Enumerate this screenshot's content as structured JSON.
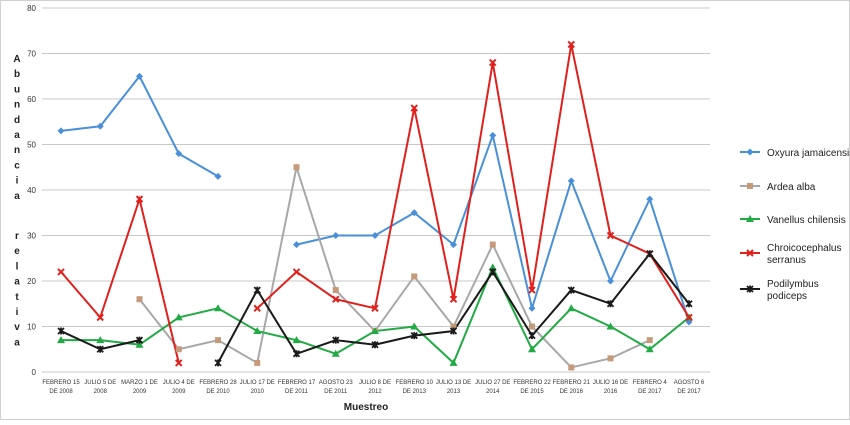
{
  "chart_data": {
    "type": "line",
    "title": "",
    "xlabel": "Muestreo",
    "ylabel": "Abundancia relativa",
    "ylim": [
      0,
      80
    ],
    "yticks": [
      0,
      10,
      20,
      30,
      40,
      50,
      60,
      70,
      80
    ],
    "grid": "horizontal",
    "legend": "right",
    "categories": [
      [
        "FEBRERO 15",
        "DE 2008"
      ],
      [
        "JULIO 5 DE",
        "2008"
      ],
      [
        "MARZO 1 DE",
        "2009"
      ],
      [
        "JULIO 4 DE",
        "2009"
      ],
      [
        "FEBRERO 28",
        "DE 2010"
      ],
      [
        "JULIO 17 DE",
        "2010"
      ],
      [
        "FEBRERO 17",
        "DE 2011"
      ],
      [
        "AGOSTO 23",
        "DE 2011"
      ],
      [
        "JULIO 8 DE",
        "2012"
      ],
      [
        "FEBRERO 10",
        "DE 2013"
      ],
      [
        "JULIO 13 DE",
        "2013"
      ],
      [
        "JULIO 27 DE",
        "2014"
      ],
      [
        "FEBRERO 22",
        "DE 2015"
      ],
      [
        "FEBRERO 21",
        "DE 2016"
      ],
      [
        "JULIO 16 DE",
        "2016"
      ],
      [
        "FEBRERO 4",
        "DE 2017"
      ],
      [
        "AGOSTO 6",
        "DE 2017"
      ]
    ],
    "series": [
      {
        "name": "Oxyura jamaicensis",
        "color": "#4a90d9",
        "marker": "diamond",
        "values": [
          53,
          54,
          65,
          48,
          43,
          null,
          28,
          30,
          30,
          35,
          28,
          52,
          14,
          42,
          20,
          38,
          11
        ]
      },
      {
        "name": "Ardea alba",
        "color": "#a8a8a8",
        "markerColor": "#c49a7a",
        "marker": "square",
        "values": [
          null,
          null,
          16,
          5,
          7,
          2,
          45,
          18,
          9,
          21,
          10,
          28,
          10,
          1,
          3,
          7,
          null
        ]
      },
      {
        "name": "Vanellus chilensis",
        "color": "#22aa44",
        "marker": "triangle",
        "values": [
          7,
          7,
          6,
          12,
          14,
          9,
          7,
          4,
          9,
          10,
          2,
          23,
          5,
          14,
          10,
          5,
          12
        ]
      },
      {
        "name": "Chroicocephalus serranus",
        "color": "#e0201c",
        "marker": "x",
        "values": [
          22,
          12,
          38,
          2,
          null,
          14,
          22,
          16,
          14,
          58,
          16,
          68,
          18,
          72,
          30,
          26,
          12
        ]
      },
      {
        "name": "Podilymbus podiceps",
        "color": "#1a1a1a",
        "marker": "star",
        "values": [
          9,
          5,
          7,
          null,
          2,
          18,
          4,
          7,
          6,
          8,
          9,
          22,
          8,
          18,
          15,
          26,
          15
        ]
      }
    ],
    "legend_labels": [
      [
        "Oxyura jamaicensis"
      ],
      [
        "Ardea alba"
      ],
      [
        "Vanellus chilensis"
      ],
      [
        "Chroicocephalus",
        "serranus"
      ],
      [
        "Podilymbus",
        "podiceps"
      ]
    ]
  }
}
